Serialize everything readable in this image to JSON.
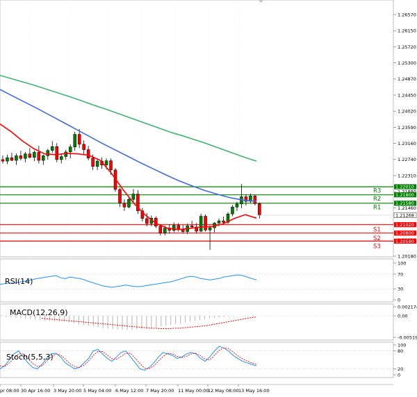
{
  "chart_data": [
    {
      "type": "candlestick",
      "title": "",
      "ylim": [
        1.2018,
        1.2689
      ],
      "y_ticks": [
        "1.26570",
        "1.26150",
        "1.25720",
        "1.25300",
        "1.24870",
        "1.24450",
        "1.24020",
        "1.23590",
        "1.23160",
        "1.22740",
        "1.22310",
        "1.21880",
        "1.21460",
        "1.21030",
        "1.20600",
        "1.20180"
      ],
      "current_price": {
        "value": 1.21268,
        "label": "1.21268"
      },
      "levels": [
        {
          "name": "R3",
          "value": 1.2201,
          "label": "1.22010",
          "color": "#008000"
        },
        {
          "name": "R2",
          "value": 1.218,
          "label": "1.21800",
          "color": "#008000"
        },
        {
          "name": "R1",
          "value": 1.2158,
          "label": "1.21580",
          "color": "#008000"
        },
        {
          "name": "S1",
          "value": 1.2102,
          "label": "1.21020",
          "color": "#ff0000"
        },
        {
          "name": "S2",
          "value": 1.208,
          "label": "1.20800",
          "color": "#ff0000"
        },
        {
          "name": "S3",
          "value": 1.2059,
          "label": "1.20590",
          "color": "#ff0000"
        }
      ],
      "candles": [
        {
          "o": 1.2272,
          "h": 1.2283,
          "l": 1.2262,
          "c": 1.2268
        },
        {
          "o": 1.2268,
          "h": 1.2285,
          "l": 1.226,
          "c": 1.2277
        },
        {
          "o": 1.2277,
          "h": 1.229,
          "l": 1.2268,
          "c": 1.227
        },
        {
          "o": 1.227,
          "h": 1.2288,
          "l": 1.2258,
          "c": 1.2282
        },
        {
          "o": 1.2282,
          "h": 1.2295,
          "l": 1.227,
          "c": 1.2275
        },
        {
          "o": 1.2275,
          "h": 1.2292,
          "l": 1.2265,
          "c": 1.2287
        },
        {
          "o": 1.2287,
          "h": 1.2302,
          "l": 1.2275,
          "c": 1.2278
        },
        {
          "o": 1.2278,
          "h": 1.2296,
          "l": 1.2268,
          "c": 1.2291
        },
        {
          "o": 1.2291,
          "h": 1.2308,
          "l": 1.2262,
          "c": 1.227
        },
        {
          "o": 1.227,
          "h": 1.2285,
          "l": 1.2258,
          "c": 1.2282
        },
        {
          "o": 1.2282,
          "h": 1.23,
          "l": 1.2272,
          "c": 1.2296
        },
        {
          "o": 1.2296,
          "h": 1.232,
          "l": 1.229,
          "c": 1.2306
        },
        {
          "o": 1.2306,
          "h": 1.2315,
          "l": 1.2265,
          "c": 1.2272
        },
        {
          "o": 1.2272,
          "h": 1.2288,
          "l": 1.2262,
          "c": 1.228
        },
        {
          "o": 1.228,
          "h": 1.2298,
          "l": 1.2272,
          "c": 1.2292
        },
        {
          "o": 1.2292,
          "h": 1.2312,
          "l": 1.2275,
          "c": 1.2305
        },
        {
          "o": 1.2305,
          "h": 1.2345,
          "l": 1.2295,
          "c": 1.2338
        },
        {
          "o": 1.2338,
          "h": 1.2352,
          "l": 1.2302,
          "c": 1.2312
        },
        {
          "o": 1.2312,
          "h": 1.2322,
          "l": 1.2285,
          "c": 1.2298
        },
        {
          "o": 1.2298,
          "h": 1.2308,
          "l": 1.227,
          "c": 1.2276
        },
        {
          "o": 1.2276,
          "h": 1.2285,
          "l": 1.2245,
          "c": 1.2254
        },
        {
          "o": 1.2254,
          "h": 1.2275,
          "l": 1.2245,
          "c": 1.2268
        },
        {
          "o": 1.2268,
          "h": 1.2278,
          "l": 1.2248,
          "c": 1.2258
        },
        {
          "o": 1.2258,
          "h": 1.2275,
          "l": 1.2247,
          "c": 1.2269
        },
        {
          "o": 1.2269,
          "h": 1.2275,
          "l": 1.2232,
          "c": 1.2245
        },
        {
          "o": 1.2245,
          "h": 1.225,
          "l": 1.2188,
          "c": 1.2194
        },
        {
          "o": 1.2194,
          "h": 1.2198,
          "l": 1.2148,
          "c": 1.2158
        },
        {
          "o": 1.2158,
          "h": 1.2168,
          "l": 1.2138,
          "c": 1.2148
        },
        {
          "o": 1.2148,
          "h": 1.2172,
          "l": 1.2145,
          "c": 1.2168
        },
        {
          "o": 1.2168,
          "h": 1.2195,
          "l": 1.216,
          "c": 1.2182
        },
        {
          "o": 1.2182,
          "h": 1.2192,
          "l": 1.213,
          "c": 1.2138
        },
        {
          "o": 1.2138,
          "h": 1.2145,
          "l": 1.211,
          "c": 1.2118
        },
        {
          "o": 1.2118,
          "h": 1.2132,
          "l": 1.2098,
          "c": 1.2105
        },
        {
          "o": 1.2105,
          "h": 1.2126,
          "l": 1.2098,
          "c": 1.2119
        },
        {
          "o": 1.2119,
          "h": 1.2124,
          "l": 1.2093,
          "c": 1.2098
        },
        {
          "o": 1.2098,
          "h": 1.2103,
          "l": 1.2074,
          "c": 1.208
        },
        {
          "o": 1.208,
          "h": 1.2099,
          "l": 1.2074,
          "c": 1.2093
        },
        {
          "o": 1.2093,
          "h": 1.2103,
          "l": 1.2079,
          "c": 1.2087
        },
        {
          "o": 1.2087,
          "h": 1.2108,
          "l": 1.2082,
          "c": 1.21
        },
        {
          "o": 1.21,
          "h": 1.2106,
          "l": 1.2084,
          "c": 1.209
        },
        {
          "o": 1.209,
          "h": 1.2101,
          "l": 1.2079,
          "c": 1.2084
        },
        {
          "o": 1.2084,
          "h": 1.2105,
          "l": 1.2078,
          "c": 1.2099
        },
        {
          "o": 1.2099,
          "h": 1.2112,
          "l": 1.2092,
          "c": 1.2096
        },
        {
          "o": 1.2096,
          "h": 1.2106,
          "l": 1.2079,
          "c": 1.2085
        },
        {
          "o": 1.2085,
          "h": 1.2131,
          "l": 1.2082,
          "c": 1.2124
        },
        {
          "o": 1.2124,
          "h": 1.2129,
          "l": 1.2084,
          "c": 1.2088
        },
        {
          "o": 1.2088,
          "h": 1.21,
          "l": 1.2036,
          "c": 1.2094
        },
        {
          "o": 1.2094,
          "h": 1.2109,
          "l": 1.2082,
          "c": 1.2106
        },
        {
          "o": 1.2106,
          "h": 1.2118,
          "l": 1.2098,
          "c": 1.2112
        },
        {
          "o": 1.2112,
          "h": 1.2123,
          "l": 1.2102,
          "c": 1.2108
        },
        {
          "o": 1.2108,
          "h": 1.2135,
          "l": 1.2104,
          "c": 1.213
        },
        {
          "o": 1.213,
          "h": 1.2153,
          "l": 1.2124,
          "c": 1.2148
        },
        {
          "o": 1.2148,
          "h": 1.2162,
          "l": 1.2138,
          "c": 1.2156
        },
        {
          "o": 1.2156,
          "h": 1.2208,
          "l": 1.2145,
          "c": 1.2175
        },
        {
          "o": 1.2175,
          "h": 1.2182,
          "l": 1.2152,
          "c": 1.2163
        },
        {
          "o": 1.2163,
          "h": 1.2183,
          "l": 1.2158,
          "c": 1.2177
        },
        {
          "o": 1.2177,
          "h": 1.218,
          "l": 1.2152,
          "c": 1.2157
        },
        {
          "o": 1.2157,
          "h": 1.216,
          "l": 1.2118,
          "c": 1.2127
        }
      ],
      "ma_slow": {
        "color": "#3cb371",
        "values": [
          1.2492,
          1.2484,
          1.2476,
          1.2468,
          1.2459,
          1.245,
          1.2441,
          1.2432,
          1.2422,
          1.2412,
          1.2403,
          1.2393,
          1.2383,
          1.2373,
          1.2363,
          1.2353,
          1.2343,
          1.2335,
          1.2326,
          1.2317,
          1.2307,
          1.2297,
          1.2287,
          1.2277,
          1.2268
        ]
      },
      "ma_mid": {
        "color": "#4169e1",
        "values": [
          1.2455,
          1.2438,
          1.2421,
          1.2404,
          1.2386,
          1.2368,
          1.235,
          1.2332,
          1.2314,
          1.2297,
          1.228,
          1.2263,
          1.2247,
          1.2231,
          1.2216,
          1.2203,
          1.2191,
          1.2181,
          1.2172,
          1.2166,
          1.2163
        ]
      },
      "ma_fast": {
        "color": "#ff0000",
        "values": [
          1.2365,
          1.2345,
          1.2321,
          1.2301,
          1.2287,
          1.2285,
          1.2288,
          1.2287,
          1.2283,
          1.227,
          1.2236,
          1.2195,
          1.2158,
          1.2128,
          1.2105,
          1.2093,
          1.2089,
          1.2092,
          1.2096,
          1.2097,
          1.2104,
          1.2118,
          1.2128,
          1.2119
        ]
      },
      "x_ticks": [
        "pr 08:00",
        "30 Apr 16:00",
        "3 May 20:00",
        "5 May 04:00",
        "6 May 12:00",
        "7 May 20:00",
        "11 May 00:00",
        "12 May 08:00",
        "13 May 16:00"
      ]
    },
    {
      "type": "line",
      "label": "RSI(14)",
      "ylim": [
        0,
        100
      ],
      "y_ticks": [
        "100",
        "70",
        "30",
        "0"
      ],
      "series": [
        {
          "color": "#1e90ff",
          "values": [
            42,
            44,
            46,
            45,
            48,
            50,
            52,
            55,
            58,
            60,
            62,
            64,
            66,
            60,
            58,
            62,
            60,
            58,
            55,
            50,
            46,
            42,
            38,
            36,
            34,
            36,
            38,
            40,
            38,
            36,
            36,
            38,
            40,
            42,
            44,
            46,
            48,
            50,
            54,
            58,
            62,
            64,
            62,
            58,
            56,
            54,
            56,
            58,
            62,
            64,
            66,
            68,
            66,
            62,
            58,
            54
          ]
        }
      ]
    },
    {
      "type": "histogram",
      "label": "MACD(12,26,9)",
      "ylim": [
        -0.005191,
        0.002174
      ],
      "y_ticks": [
        "0.002174",
        "0.00",
        "-0.005191"
      ],
      "series": [
        {
          "name": "main",
          "color": "#c0c0c0",
          "values": [
            -0.0002,
            -0.0003,
            -0.0004,
            -0.0005,
            -0.0006,
            -0.0007,
            -0.0008,
            -0.0009,
            -0.001,
            -0.0011,
            -0.0012,
            -0.0013,
            -0.0014,
            -0.0015,
            -0.0016,
            -0.0018,
            -0.002,
            -0.0022,
            -0.0024,
            -0.0026,
            -0.0028,
            -0.003,
            -0.0031,
            -0.0032,
            -0.0033,
            -0.0034,
            -0.0034,
            -0.0034,
            -0.0033,
            -0.0032,
            -0.0031,
            -0.003,
            -0.0028,
            -0.0026,
            -0.0024,
            -0.0022,
            -0.002,
            -0.0018,
            -0.0016,
            -0.0014,
            -0.0012,
            -0.001,
            -0.0008,
            -0.0006,
            -0.0005,
            -0.0004,
            -0.0003,
            -0.0002,
            -0.0001,
            0,
            -0.0001,
            -0.0001,
            -0.0002
          ]
        },
        {
          "name": "signal",
          "color": "#ff0000",
          "values": [
            -0.0006,
            -0.0007,
            -0.0008,
            -0.0009,
            -0.001,
            -0.0011,
            -0.0012,
            -0.0013,
            -0.0014,
            -0.0015,
            -0.0016,
            -0.0017,
            -0.0018,
            -0.0019,
            -0.002,
            -0.0021,
            -0.0022,
            -0.0023,
            -0.0024,
            -0.0025,
            -0.0026,
            -0.0027,
            -0.0028,
            -0.0029,
            -0.003,
            -0.003,
            -0.0031,
            -0.0031,
            -0.0031,
            -0.003,
            -0.003,
            -0.0029,
            -0.0028,
            -0.0027,
            -0.0026,
            -0.0025,
            -0.0024,
            -0.0022,
            -0.002,
            -0.0018,
            -0.0016,
            -0.0014,
            -0.0012,
            -0.001,
            -0.0008,
            -0.0006,
            -0.0004,
            -0.0003
          ]
        }
      ]
    },
    {
      "type": "line",
      "label": "Stoch(5,5,3)",
      "ylim": [
        0,
        100
      ],
      "y_ticks": [
        "100",
        "80",
        "20",
        "0"
      ],
      "series": [
        {
          "name": "main",
          "color": "#1e90ff",
          "values": [
            20,
            30,
            50,
            70,
            80,
            60,
            40,
            25,
            20,
            35,
            55,
            70,
            72,
            60,
            40,
            30,
            20,
            25,
            40,
            55,
            80,
            85,
            70,
            55,
            45,
            60,
            75,
            80,
            60,
            40,
            20,
            15,
            25,
            40,
            60,
            75,
            70,
            65,
            55,
            60,
            70,
            75,
            70,
            55,
            45,
            60,
            80,
            95,
            90,
            80,
            65,
            55,
            45,
            40,
            35,
            30
          ]
        },
        {
          "name": "signal",
          "color": "#ff0000",
          "values": [
            30,
            28,
            40,
            55,
            70,
            70,
            55,
            38,
            28,
            30,
            45,
            60,
            70,
            66,
            52,
            38,
            28,
            24,
            32,
            46,
            65,
            78,
            78,
            66,
            54,
            52,
            62,
            72,
            72,
            55,
            38,
            22,
            20,
            30,
            46,
            62,
            72,
            70,
            62,
            58,
            62,
            70,
            72,
            64,
            52,
            50,
            65,
            82,
            90,
            88,
            76,
            64,
            54,
            46,
            40,
            35
          ]
        }
      ]
    }
  ]
}
